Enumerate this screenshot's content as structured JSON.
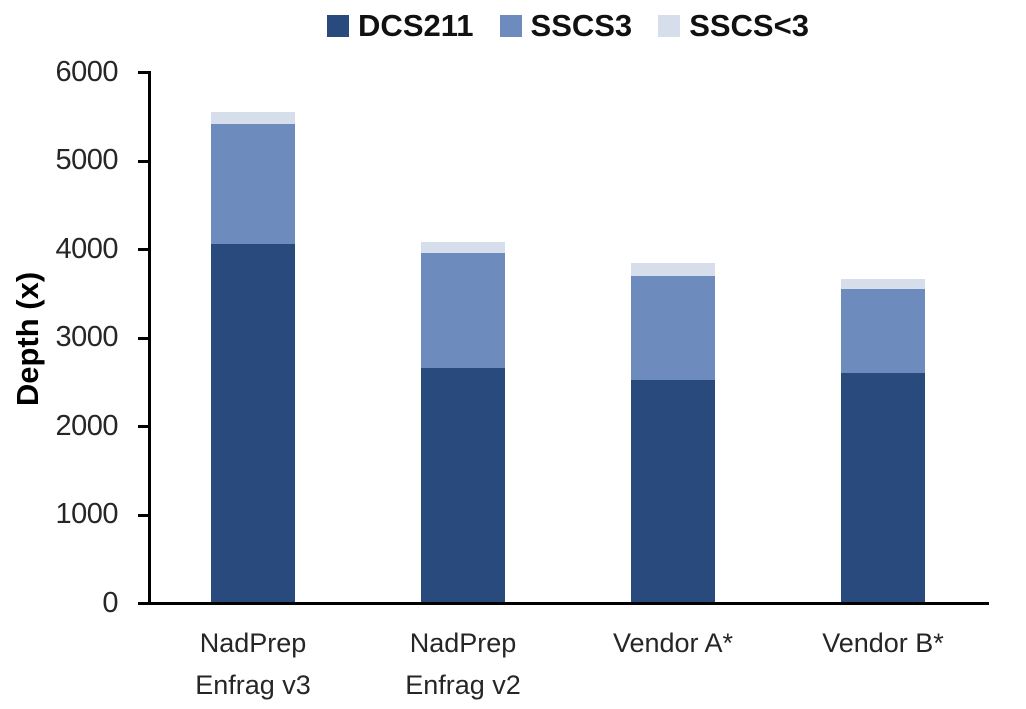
{
  "chart_data": {
    "type": "bar",
    "stacked": true,
    "title": "",
    "ylabel": "Depth (x)",
    "xlabel": "",
    "ylim": [
      0,
      6000
    ],
    "yticks": [
      0,
      1000,
      2000,
      3000,
      4000,
      5000,
      6000
    ],
    "grid": false,
    "legend_position": "top-center",
    "categories": [
      "NadPrep\nEnfrag v3",
      "NadPrep\nEnfrag v2",
      "Vendor A*",
      "Vendor B*"
    ],
    "series": [
      {
        "name": "DCS211",
        "color": "#294a7d",
        "values": [
          4050,
          2650,
          2510,
          2590
        ]
      },
      {
        "name": "SSCS3",
        "color": "#6d8cbd",
        "values": [
          1350,
          1290,
          1175,
          950
        ]
      },
      {
        "name": "SSCS<3",
        "color": "#d6deec",
        "values": [
          140,
          125,
          150,
          110
        ]
      }
    ]
  },
  "colors": {
    "axis": "#000000",
    "tick_text": "#262626",
    "legend_text": "#111111",
    "background": "#ffffff"
  }
}
